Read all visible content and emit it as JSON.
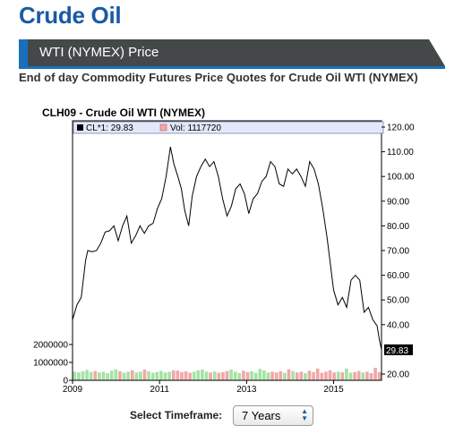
{
  "page": {
    "title": "Crude Oil",
    "banner": "WTI (NYMEX) Price",
    "subtitle": "End of day Commodity Futures Price Quotes for Crude Oil WTI (NYMEX)"
  },
  "controls": {
    "timeframe_label": "Select Timeframe:",
    "timeframe_value": "7 Years"
  },
  "colors": {
    "brand": "#1a5aa5",
    "banner": "#444849",
    "banner_accent": "#1a6fbd",
    "volume_up": "#a6e2a6",
    "volume_down": "#f0a8a8"
  },
  "chart_data": {
    "type": "line",
    "title": "CLH09 - Crude Oil WTI (NYMEX)",
    "legend": {
      "close": "CL*1: 29.83",
      "volume": "Vol: 1117720",
      "placement": "top"
    },
    "last_price_label": "29.83",
    "x": [
      2009.0,
      2009.1,
      2009.2,
      2009.3,
      2009.35,
      2009.45,
      2009.55,
      2009.65,
      2009.75,
      2009.85,
      2009.95,
      2010.05,
      2010.15,
      2010.25,
      2010.35,
      2010.45,
      2010.55,
      2010.65,
      2010.75,
      2010.85,
      2010.95,
      2011.05,
      2011.15,
      2011.25,
      2011.33,
      2011.42,
      2011.5,
      2011.58,
      2011.67,
      2011.75,
      2011.85,
      2011.95,
      2012.05,
      2012.15,
      2012.25,
      2012.35,
      2012.45,
      2012.55,
      2012.65,
      2012.75,
      2012.85,
      2012.95,
      2013.05,
      2013.15,
      2013.25,
      2013.35,
      2013.45,
      2013.55,
      2013.65,
      2013.75,
      2013.85,
      2013.95,
      2014.05,
      2014.15,
      2014.25,
      2014.35,
      2014.45,
      2014.55,
      2014.65,
      2014.75,
      2014.85,
      2014.95,
      2015.0,
      2015.1,
      2015.2,
      2015.3,
      2015.4,
      2015.5,
      2015.6,
      2015.7,
      2015.8,
      2015.9,
      2016.0,
      2016.05,
      2016.1
    ],
    "close": [
      42,
      48,
      51,
      66,
      70,
      69.5,
      70,
      73,
      77.5,
      78,
      80,
      74,
      80,
      84,
      73,
      76,
      80,
      77,
      80,
      81,
      87,
      91,
      100,
      112,
      105,
      100,
      95,
      86,
      80,
      92,
      100,
      104,
      107,
      104,
      106,
      100,
      91,
      84,
      88,
      95,
      97,
      93,
      85,
      91,
      93,
      98,
      100,
      106,
      104,
      97,
      96,
      103,
      101,
      103,
      100,
      96,
      106,
      103,
      97,
      87,
      75,
      61,
      54,
      48,
      51,
      47,
      58,
      60,
      58,
      45,
      47,
      42,
      39.5,
      34,
      29.83
    ],
    "volume_bars": 75,
    "y_ticks": [
      "120.00",
      "110.00",
      "100.00",
      "90.00",
      "80.00",
      "70.00",
      "60.00",
      "50.00",
      "40.00",
      "20.00"
    ],
    "ylim": [
      20,
      120
    ],
    "volume_ticks": [
      "2000000",
      "1000000",
      "0"
    ],
    "volume_ylim": [
      0,
      2000000
    ],
    "x_ticks": [
      "2009",
      "2011",
      "2013",
      "2015"
    ],
    "xlim": [
      2009,
      2016.1
    ],
    "grid": false
  }
}
